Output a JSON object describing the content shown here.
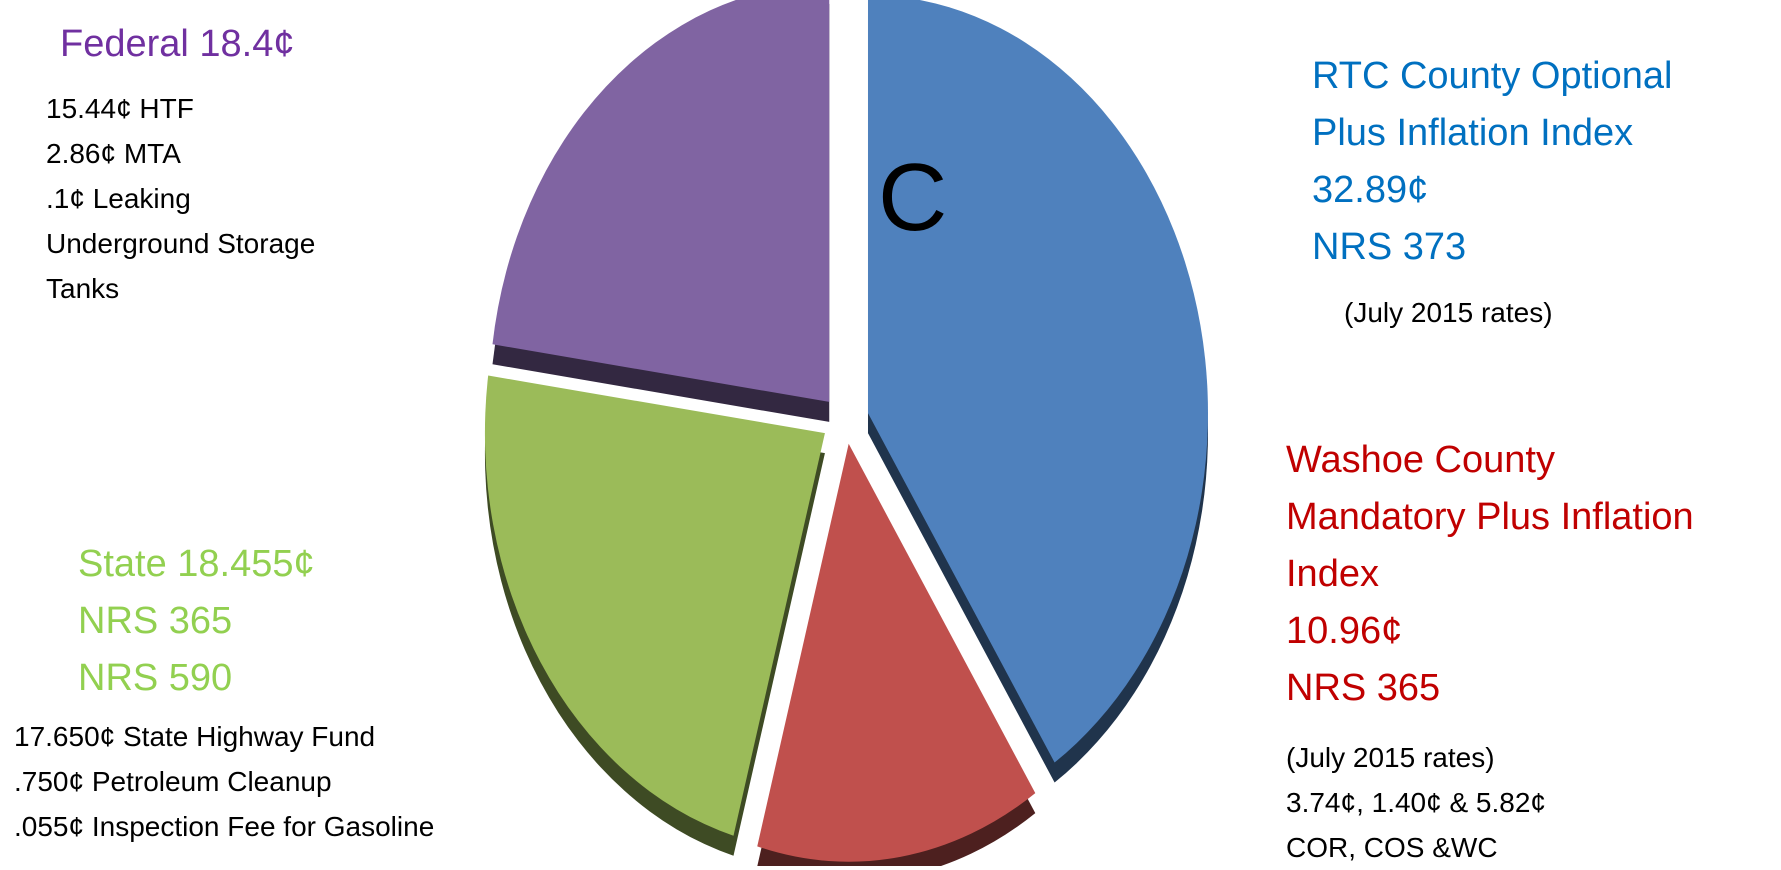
{
  "center_label": "C",
  "colors": {
    "rtc": "#4f81bd",
    "washoe": "#c0504d",
    "state": "#9bbb59",
    "federal": "#8064a2"
  },
  "federal": {
    "title": "Federal 18.4¢",
    "details": [
      "15.44¢ HTF",
      "2.86¢ MTA",
      ".1¢ Leaking",
      "Underground Storage",
      "Tanks"
    ]
  },
  "rtc": {
    "lines": [
      "RTC County Optional",
      "Plus Inflation Index",
      "32.89¢",
      "NRS 373"
    ],
    "note": "(July 2015 rates)"
  },
  "washoe": {
    "lines": [
      "Washoe County",
      "Mandatory Plus Inflation",
      "Index",
      "10.96¢",
      "NRS 365"
    ],
    "notes": [
      "(July 2015 rates)",
      "3.74¢, 1.40¢ & 5.82¢",
      "COR, COS &WC"
    ]
  },
  "state": {
    "lines": [
      "State 18.455¢",
      "NRS 365",
      "NRS 590"
    ],
    "details": [
      "17.650¢ State Highway Fund",
      ".750¢ Petroleum Cleanup",
      ".055¢ Inspection Fee for Gasoline"
    ]
  },
  "chart_data": {
    "type": "pie",
    "exploded": true,
    "start_position": "12 o'clock, clockwise",
    "slices": [
      {
        "label": "RTC County Optional Plus Inflation Index",
        "value": 32.89,
        "color": "#4f81bd"
      },
      {
        "label": "Washoe County Mandatory Plus Inflation Index",
        "value": 10.96,
        "color": "#c0504d"
      },
      {
        "label": "State",
        "value": 18.455,
        "color": "#9bbb59"
      },
      {
        "label": "Federal",
        "value": 18.4,
        "color": "#8064a2"
      }
    ]
  }
}
